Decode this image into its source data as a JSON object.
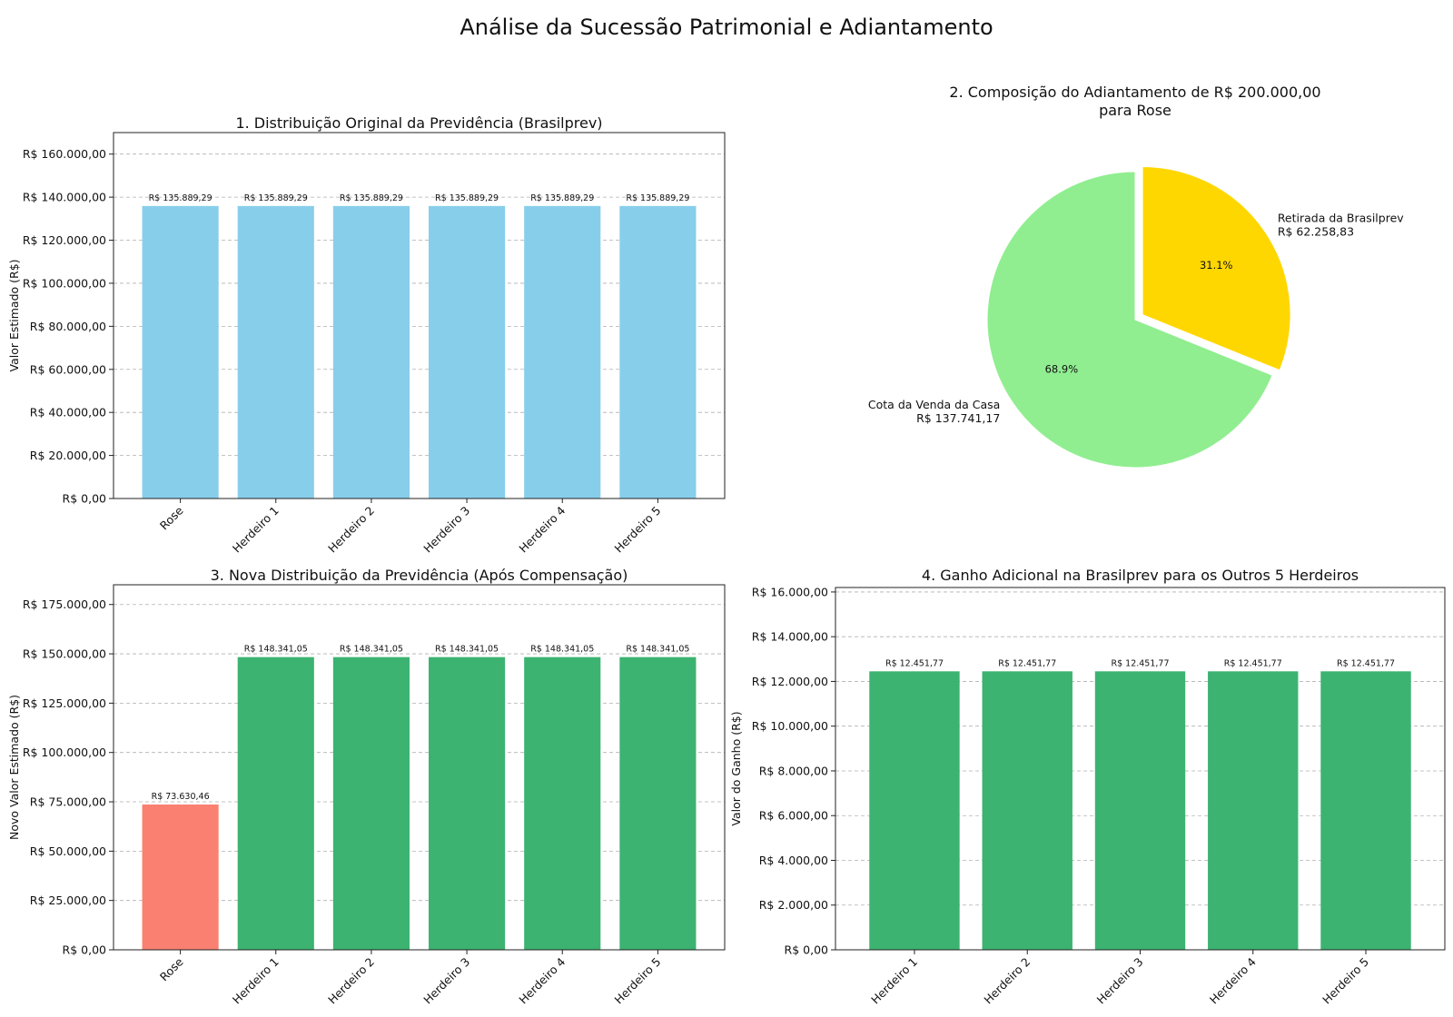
{
  "suptitle": "Análise da Sucessão Patrimonial e Adiantamento",
  "chart_data": [
    {
      "type": "bar",
      "title": "1. Distribuição Original da Previdência (Brasilprev)",
      "xlabel": "",
      "ylabel": "Valor Estimado (R$)",
      "categories": [
        "Rose",
        "Herdeiro 1",
        "Herdeiro 2",
        "Herdeiro 3",
        "Herdeiro 4",
        "Herdeiro 5"
      ],
      "values": [
        135889.29,
        135889.29,
        135889.29,
        135889.29,
        135889.29,
        135889.29
      ],
      "value_labels": [
        "R$ 135.889,29",
        "R$ 135.889,29",
        "R$ 135.889,29",
        "R$ 135.889,29",
        "R$ 135.889,29",
        "R$ 135.889,29"
      ],
      "colors": [
        "#87ceeb",
        "#87ceeb",
        "#87ceeb",
        "#87ceeb",
        "#87ceeb",
        "#87ceeb"
      ],
      "ylim": [
        0,
        170000
      ],
      "yticks": [
        0,
        20000,
        40000,
        60000,
        80000,
        100000,
        120000,
        140000,
        160000
      ],
      "ytick_labels": [
        "R$ 0,00",
        "R$ 20.000,00",
        "R$ 40.000,00",
        "R$ 60.000,00",
        "R$ 80.000,00",
        "R$ 100.000,00",
        "R$ 120.000,00",
        "R$ 140.000,00",
        "R$ 160.000,00"
      ],
      "grid": true
    },
    {
      "type": "pie",
      "title": "2. Composição do Adiantamento de R$ 200.000,00 para Rose",
      "title_lines": [
        "2. Composição do Adiantamento de R$ 200.000,00",
        "para Rose"
      ],
      "slices": [
        {
          "label": "Retirada da Brasilprev",
          "value_label": "R$ 62.258,83",
          "value": 62258.83,
          "pct": "31.1%",
          "color": "#ffd700",
          "explode": true
        },
        {
          "label": "Cota da Venda da Casa",
          "value_label": "R$ 137.741,17",
          "value": 137741.17,
          "pct": "68.9%",
          "color": "#90ee90",
          "explode": false
        }
      ],
      "start_angle_deg": 90
    },
    {
      "type": "bar",
      "title": "3. Nova Distribuição da Previdência (Após Compensação)",
      "xlabel": "",
      "ylabel": "Novo Valor Estimado (R$)",
      "categories": [
        "Rose",
        "Herdeiro 1",
        "Herdeiro 2",
        "Herdeiro 3",
        "Herdeiro 4",
        "Herdeiro 5"
      ],
      "values": [
        73630.46,
        148341.05,
        148341.05,
        148341.05,
        148341.05,
        148341.05
      ],
      "value_labels": [
        "R$ 73.630,46",
        "R$ 148.341,05",
        "R$ 148.341,05",
        "R$ 148.341,05",
        "R$ 148.341,05",
        "R$ 148.341,05"
      ],
      "colors": [
        "#fa8072",
        "#3cb371",
        "#3cb371",
        "#3cb371",
        "#3cb371",
        "#3cb371"
      ],
      "ylim": [
        0,
        185000
      ],
      "yticks": [
        0,
        25000,
        50000,
        75000,
        100000,
        125000,
        150000,
        175000
      ],
      "ytick_labels": [
        "R$ 0,00",
        "R$ 25.000,00",
        "R$ 50.000,00",
        "R$ 75.000,00",
        "R$ 100.000,00",
        "R$ 125.000,00",
        "R$ 150.000,00",
        "R$ 175.000,00"
      ],
      "grid": true
    },
    {
      "type": "bar",
      "title": "4. Ganho Adicional na Brasilprev para os Outros 5 Herdeiros",
      "xlabel": "",
      "ylabel": "Valor do Ganho (R$)",
      "categories": [
        "Herdeiro 1",
        "Herdeiro 2",
        "Herdeiro 3",
        "Herdeiro 4",
        "Herdeiro 5"
      ],
      "values": [
        12451.77,
        12451.77,
        12451.77,
        12451.77,
        12451.77
      ],
      "value_labels": [
        "R$ 12.451,77",
        "R$ 12.451,77",
        "R$ 12.451,77",
        "R$ 12.451,77",
        "R$ 12.451,77"
      ],
      "colors": [
        "#3cb371",
        "#3cb371",
        "#3cb371",
        "#3cb371",
        "#3cb371"
      ],
      "ylim": [
        0,
        16200
      ],
      "yticks": [
        0,
        2000,
        4000,
        6000,
        8000,
        10000,
        12000,
        14000,
        16000
      ],
      "ytick_labels": [
        "R$ 0,00",
        "R$ 2.000,00",
        "R$ 4.000,00",
        "R$ 6.000,00",
        "R$ 8.000,00",
        "R$ 10.000,00",
        "R$ 12.000,00",
        "R$ 14.000,00",
        "R$ 16.000,00"
      ],
      "grid": true
    }
  ]
}
